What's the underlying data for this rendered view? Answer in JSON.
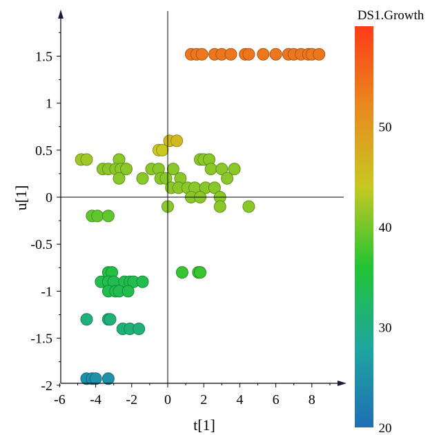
{
  "chart_data": {
    "type": "scatter",
    "xlabel": "t[1]",
    "ylabel": "u[1]",
    "xlim": [
      -6,
      10
    ],
    "ylim": [
      -2,
      1.9
    ],
    "x_ticks": [
      -6,
      -4,
      -2,
      0,
      2,
      4,
      6,
      8
    ],
    "x_tick_labels": [
      "-6",
      "-4",
      "-2",
      "0",
      "2",
      "4",
      "6",
      "8"
    ],
    "y_ticks": [
      -2,
      -1.5,
      -1,
      -0.5,
      0,
      0.5,
      1,
      1.5
    ],
    "y_tick_labels": [
      "-2",
      "-1.5",
      "-1",
      "-0.5",
      "0",
      "0.5",
      "1",
      "1.5"
    ],
    "grid": false,
    "colorbar": {
      "title": "DS1.Growth",
      "min": 20,
      "max": 60,
      "ticks": [
        20,
        30,
        40,
        50
      ],
      "tick_labels": [
        "20",
        "30",
        "40",
        "50"
      ],
      "colors": [
        "#1f6fb5",
        "#1fa6a0",
        "#22c434",
        "#c8c822",
        "#e88a1e",
        "#ff3b18"
      ]
    },
    "points": [
      {
        "x": 1.3,
        "y": 1.52,
        "c": 54
      },
      {
        "x": 1.6,
        "y": 1.52,
        "c": 54
      },
      {
        "x": 1.9,
        "y": 1.52,
        "c": 54
      },
      {
        "x": 2.6,
        "y": 1.52,
        "c": 54
      },
      {
        "x": 3.0,
        "y": 1.52,
        "c": 54
      },
      {
        "x": 3.5,
        "y": 1.52,
        "c": 54
      },
      {
        "x": 4.3,
        "y": 1.52,
        "c": 54
      },
      {
        "x": 4.5,
        "y": 1.52,
        "c": 54
      },
      {
        "x": 5.3,
        "y": 1.52,
        "c": 54
      },
      {
        "x": 6.0,
        "y": 1.52,
        "c": 54
      },
      {
        "x": 6.7,
        "y": 1.52,
        "c": 54
      },
      {
        "x": 7.0,
        "y": 1.52,
        "c": 54
      },
      {
        "x": 7.4,
        "y": 1.52,
        "c": 54
      },
      {
        "x": 7.8,
        "y": 1.52,
        "c": 54
      },
      {
        "x": 8.0,
        "y": 1.52,
        "c": 54
      },
      {
        "x": 8.4,
        "y": 1.52,
        "c": 54
      },
      {
        "x": 0.1,
        "y": 0.6,
        "c": 46
      },
      {
        "x": 0.5,
        "y": 0.6,
        "c": 46
      },
      {
        "x": -0.5,
        "y": 0.5,
        "c": 44
      },
      {
        "x": -0.3,
        "y": 0.5,
        "c": 44
      },
      {
        "x": -4.8,
        "y": 0.4,
        "c": 42
      },
      {
        "x": -4.5,
        "y": 0.4,
        "c": 42
      },
      {
        "x": -2.7,
        "y": 0.4,
        "c": 41
      },
      {
        "x": 1.8,
        "y": 0.4,
        "c": 41
      },
      {
        "x": 2.0,
        "y": 0.4,
        "c": 41
      },
      {
        "x": 2.3,
        "y": 0.4,
        "c": 41
      },
      {
        "x": -3.6,
        "y": 0.3,
        "c": 41
      },
      {
        "x": -3.3,
        "y": 0.3,
        "c": 41
      },
      {
        "x": -2.9,
        "y": 0.3,
        "c": 41
      },
      {
        "x": -2.6,
        "y": 0.3,
        "c": 41
      },
      {
        "x": -2.3,
        "y": 0.3,
        "c": 41
      },
      {
        "x": -0.9,
        "y": 0.3,
        "c": 41
      },
      {
        "x": -0.5,
        "y": 0.3,
        "c": 41
      },
      {
        "x": 0.3,
        "y": 0.3,
        "c": 41
      },
      {
        "x": 2.4,
        "y": 0.3,
        "c": 41
      },
      {
        "x": 3.0,
        "y": 0.3,
        "c": 41
      },
      {
        "x": 3.7,
        "y": 0.3,
        "c": 41
      },
      {
        "x": -2.7,
        "y": 0.2,
        "c": 41
      },
      {
        "x": -1.4,
        "y": 0.2,
        "c": 41
      },
      {
        "x": -0.4,
        "y": 0.2,
        "c": 41
      },
      {
        "x": -0.1,
        "y": 0.2,
        "c": 41
      },
      {
        "x": 0.7,
        "y": 0.2,
        "c": 41
      },
      {
        "x": 3.3,
        "y": 0.2,
        "c": 41
      },
      {
        "x": 0.2,
        "y": 0.1,
        "c": 41
      },
      {
        "x": 0.6,
        "y": 0.1,
        "c": 41
      },
      {
        "x": 1.1,
        "y": 0.1,
        "c": 41
      },
      {
        "x": 1.5,
        "y": 0.1,
        "c": 41
      },
      {
        "x": 2.1,
        "y": 0.1,
        "c": 41
      },
      {
        "x": 2.6,
        "y": 0.1,
        "c": 41
      },
      {
        "x": 1.3,
        "y": 0.0,
        "c": 41
      },
      {
        "x": 1.8,
        "y": 0.0,
        "c": 41
      },
      {
        "x": 2.9,
        "y": 0.0,
        "c": 41
      },
      {
        "x": 0.0,
        "y": -0.1,
        "c": 41
      },
      {
        "x": 2.9,
        "y": -0.1,
        "c": 41
      },
      {
        "x": 4.5,
        "y": -0.1,
        "c": 41
      },
      {
        "x": -4.2,
        "y": -0.2,
        "c": 39
      },
      {
        "x": -3.9,
        "y": -0.2,
        "c": 39
      },
      {
        "x": -3.3,
        "y": -0.2,
        "c": 39
      },
      {
        "x": 0.8,
        "y": -0.8,
        "c": 37
      },
      {
        "x": 1.7,
        "y": -0.8,
        "c": 37
      },
      {
        "x": 1.8,
        "y": -0.8,
        "c": 37
      },
      {
        "x": -3.3,
        "y": -0.8,
        "c": 35
      },
      {
        "x": -3.1,
        "y": -0.8,
        "c": 35
      },
      {
        "x": -3.7,
        "y": -0.9,
        "c": 34
      },
      {
        "x": -3.3,
        "y": -0.9,
        "c": 34
      },
      {
        "x": -3.0,
        "y": -0.9,
        "c": 34
      },
      {
        "x": -2.4,
        "y": -0.9,
        "c": 34
      },
      {
        "x": -2.1,
        "y": -0.9,
        "c": 34
      },
      {
        "x": -1.9,
        "y": -0.9,
        "c": 34
      },
      {
        "x": -1.4,
        "y": -0.9,
        "c": 34
      },
      {
        "x": -3.3,
        "y": -1.0,
        "c": 34
      },
      {
        "x": -2.9,
        "y": -1.0,
        "c": 34
      },
      {
        "x": -2.7,
        "y": -1.0,
        "c": 34
      },
      {
        "x": -2.2,
        "y": -1.0,
        "c": 34
      },
      {
        "x": -4.5,
        "y": -1.3,
        "c": 31
      },
      {
        "x": -3.3,
        "y": -1.3,
        "c": 31
      },
      {
        "x": -3.2,
        "y": -1.3,
        "c": 31
      },
      {
        "x": -2.5,
        "y": -1.4,
        "c": 31
      },
      {
        "x": -2.1,
        "y": -1.4,
        "c": 31
      },
      {
        "x": -1.6,
        "y": -1.4,
        "c": 31
      },
      {
        "x": -4.5,
        "y": -1.93,
        "c": 25
      },
      {
        "x": -4.2,
        "y": -1.93,
        "c": 25
      },
      {
        "x": -4.0,
        "y": -1.93,
        "c": 25
      },
      {
        "x": -3.3,
        "y": -1.93,
        "c": 25
      }
    ]
  }
}
